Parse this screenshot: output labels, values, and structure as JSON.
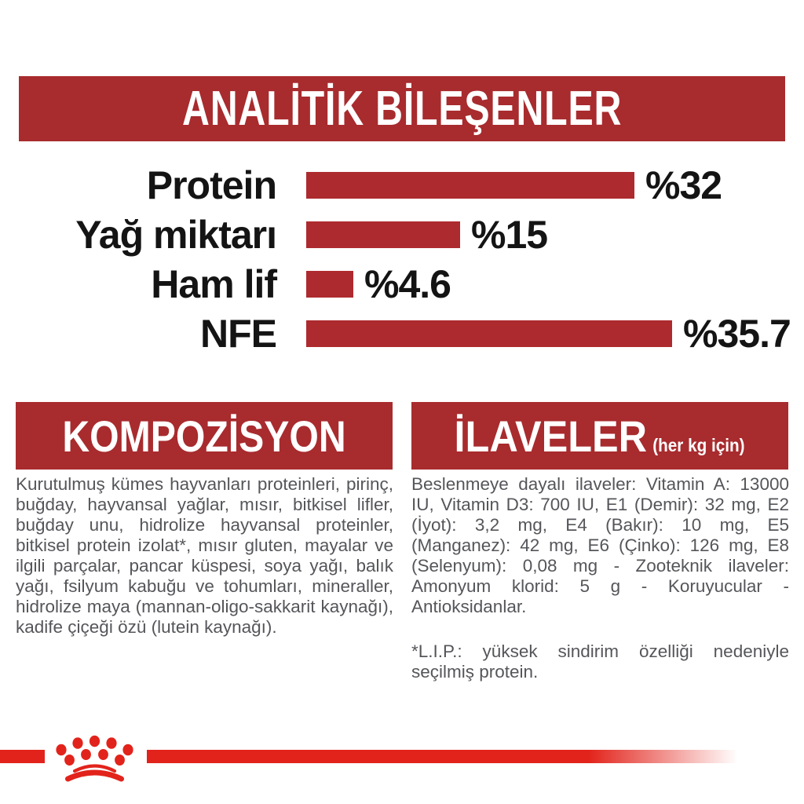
{
  "colors": {
    "banner_red": "#a82b2e",
    "bar_red": "#ad2a2e",
    "accent_red": "#e2231b",
    "label_black": "#141414",
    "body_gray": "#55565a",
    "header_text": "#ffffff"
  },
  "analytic": {
    "title": "ANALİTİK BİLEŞENLER",
    "chart_data": {
      "type": "bar",
      "orientation": "horizontal",
      "categories": [
        "Protein",
        "Yağ miktarı",
        "Ham lif",
        "NFE"
      ],
      "values": [
        32,
        15,
        4.6,
        35.7
      ],
      "value_labels": [
        "%32",
        "%15",
        "%4.6",
        "%35.7"
      ],
      "unit": "percent",
      "xlim": [
        0,
        40
      ],
      "grid": false,
      "legend": false,
      "title": "ANALİTİK BİLEŞENLER",
      "xlabel": "",
      "ylabel": ""
    }
  },
  "composition": {
    "title": "KOMPOZİSYON",
    "body": "Kurutulmuş kümes hayvanları proteinleri, pirinç, buğday, hayvansal yağlar, mısır, bitkisel lifler, buğday unu, hidrolize hayvansal proteinler, bitkisel protein izolat*, mısır gluten, mayalar ve ilgili parçalar, pancar küspesi, soya yağı, balık yağı, fsilyum kabuğu ve tohumları, mineraller, hidrolize maya (mannan-oligo-sakkarit kaynağı), kadife çiçeği özü (lutein kaynağı)."
  },
  "additives": {
    "title": "İLAVELER",
    "subtitle": "(her kg için)",
    "body": "Beslenmeye dayalı ilaveler: Vitamin A: 13000 IU, Vitamin D3: 700 IU, E1 (Demir): 32 mg, E2 (İyot): 3,2 mg, E4 (Bakır): 10 mg, E5 (Manganez): 42 mg, E6 (Çinko): 126 mg, E8 (Selenyum): 0,08 mg - Zooteknik ilaveler: Amonyum klorid: 5 g - Koruyucular - Antioksidanlar.",
    "note": "*L.I.P.: yüksek sindirim özelliği nedeniyle seçilmiş protein."
  },
  "footer": {
    "logo": "royal-canin-crown"
  }
}
